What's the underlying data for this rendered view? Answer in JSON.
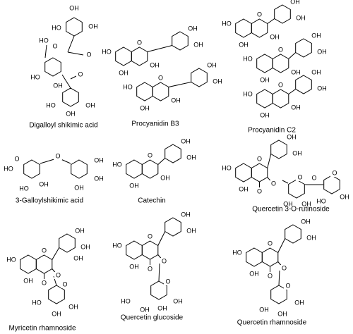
{
  "compounds": [
    {
      "name": "Digalloyl shikimic acid",
      "atoms": [
        "OH",
        "HO",
        "OH",
        "HO",
        "O",
        "O",
        "HO",
        "OH",
        "O",
        "HO",
        "OH",
        "OH"
      ]
    },
    {
      "name": "Procyanidin B3",
      "atoms": [
        "HO",
        "O",
        "OH",
        "OH",
        "OH",
        "OH",
        "HO",
        "O",
        "OH",
        "OH",
        "OH",
        "OH"
      ]
    },
    {
      "name": "Procyanidin C2",
      "atoms": [
        "HO",
        "O",
        "OH",
        "OH",
        "OH",
        "OH",
        "HO",
        "O",
        "OH",
        "OH",
        "OH",
        "OH",
        "HO",
        "O",
        "OH",
        "OH",
        "OH",
        "OH"
      ]
    },
    {
      "name": "3-Galloylshikimic acid",
      "atoms": [
        "HO",
        "O",
        "O",
        "OH",
        "OH",
        "OH",
        "HO",
        "OH"
      ]
    },
    {
      "name": "Catechin",
      "atoms": [
        "HO",
        "O",
        "OH",
        "OH",
        "OH",
        "OH"
      ]
    },
    {
      "name": "Quercetin 3-O-rutinoside",
      "atoms": [
        "HO",
        "O",
        "OH",
        "OH",
        "OH",
        "O",
        "O",
        "O",
        "OH",
        "OH",
        "O",
        "O",
        "OH",
        "HO"
      ]
    },
    {
      "name": "Myricetin rhamnoside",
      "atoms": [
        "HO",
        "O",
        "OH",
        "OH",
        "OH",
        "OH",
        "O",
        "O",
        "O",
        "OH",
        "OH",
        "HO"
      ]
    },
    {
      "name": "Quercetin glucoside",
      "atoms": [
        "HO",
        "O",
        "OH",
        "OH",
        "OH",
        "O",
        "O",
        "O",
        "HO",
        "OH",
        "OH",
        "OH"
      ]
    },
    {
      "name": "Quercetin rhamnoside",
      "atoms": [
        "HO",
        "O",
        "OH",
        "OH",
        "OH",
        "O",
        "O",
        "O",
        "OH",
        "OH",
        "OH"
      ]
    }
  ]
}
